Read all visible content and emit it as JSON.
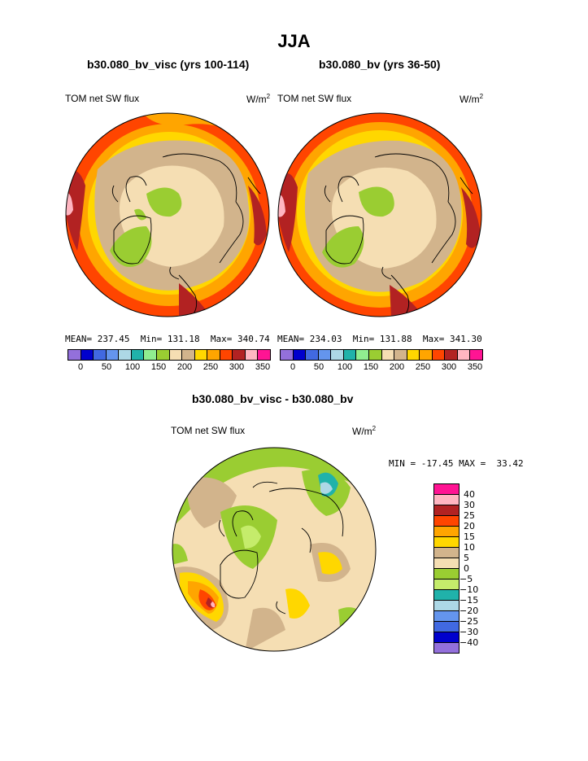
{
  "title": "JJA",
  "panels": [
    {
      "case": "b30.080_bv_visc (yrs 100-114)",
      "variable": "TOM net SW flux",
      "units_base": "W/m",
      "units_exp": "2",
      "stats": {
        "mean_label": "MEAN=",
        "mean": "237.45",
        "min_label": "Min=",
        "min": "131.18",
        "max_label": "Max=",
        "max": "340.74"
      }
    },
    {
      "case": "b30.080_bv (yrs 36-50)",
      "variable": "TOM net SW flux",
      "units_base": "W/m",
      "units_exp": "2",
      "stats": {
        "mean_label": "MEAN=",
        "mean": "234.03",
        "min_label": "Min=",
        "min": "131.88",
        "max_label": "Max=",
        "max": "341.30"
      }
    }
  ],
  "abs_colorbar": {
    "colors": [
      "#9370db",
      "#0000cd",
      "#4169e1",
      "#6495ed",
      "#add8e6",
      "#20b2aa",
      "#90ee90",
      "#9acd32",
      "#f5deb3",
      "#d2b48c",
      "#ffd700",
      "#ffa500",
      "#ff4500",
      "#b22222",
      "#ffb6c1",
      "#ff1493"
    ],
    "ticks": [
      "0",
      "50",
      "100",
      "150",
      "200",
      "250",
      "300",
      "350"
    ]
  },
  "diff": {
    "title": "b30.080_bv_visc - b30.080_bv",
    "variable": "TOM net SW flux",
    "units_base": "W/m",
    "units_exp": "2",
    "minmax": "MIN = -17.45 MAX =  33.42",
    "colorbar": {
      "colors": [
        "#ff1493",
        "#ffb6c1",
        "#b22222",
        "#ff4500",
        "#ffa500",
        "#ffd700",
        "#d2b48c",
        "#f5deb3",
        "#9acd32",
        "#c5ec6b",
        "#20b2aa",
        "#add8e6",
        "#6495ed",
        "#4169e1",
        "#0000cd",
        "#9370db"
      ],
      "ticks": [
        "40",
        "30",
        "25",
        "20",
        "15",
        "10",
        "5",
        "0",
        "−5",
        "−10",
        "−15",
        "−20",
        "−25",
        "−30",
        "−40"
      ]
    }
  }
}
